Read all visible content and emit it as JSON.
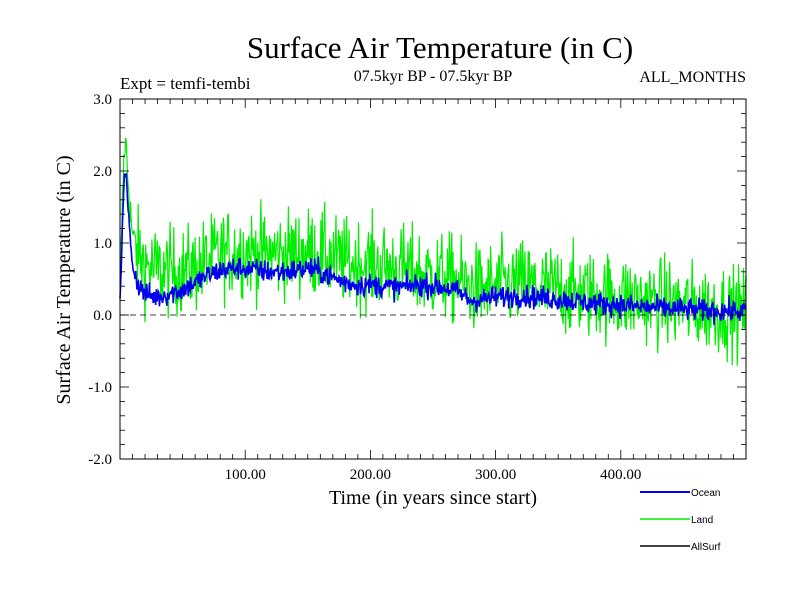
{
  "chart_data": {
    "type": "line",
    "title": "Surface Air Temperature (in C)",
    "subtitle": "07.5kyr BP - 07.5kyr BP",
    "left_label": "Expt = temfi-tembi",
    "right_label": "ALL_MONTHS",
    "xlabel": "Time (in years since start)",
    "ylabel": "Surface Air Temperature (in C)",
    "xlim": [
      0,
      500
    ],
    "ylim": [
      -2.0,
      3.0
    ],
    "x_ticks": [
      100,
      200,
      300,
      400
    ],
    "x_tick_labels": [
      "100.00",
      "200.00",
      "300.00",
      "400.00"
    ],
    "y_ticks": [
      -2.0,
      -1.0,
      0.0,
      1.0,
      2.0,
      3.0
    ],
    "y_tick_labels": [
      "-2.0",
      "-1.0",
      "0.0",
      "1.0",
      "2.0",
      "3.0"
    ],
    "zero_line": 0.0,
    "legend_position": "bottom-right",
    "series": [
      {
        "name": "Land",
        "color": "#00ee00",
        "x": [
          0,
          1,
          2,
          3,
          4,
          5,
          6,
          8,
          10,
          13,
          16,
          20,
          25,
          30,
          40,
          50,
          60,
          70,
          80,
          90,
          100,
          110,
          120,
          130,
          140,
          150,
          160,
          170,
          180,
          190,
          200,
          210,
          220,
          230,
          240,
          250,
          260,
          270,
          280,
          290,
          300,
          310,
          320,
          330,
          340,
          350,
          360,
          370,
          380,
          390,
          400,
          410,
          420,
          430,
          440,
          450,
          460,
          470,
          480,
          490,
          500
        ],
        "values": [
          0.3,
          0.9,
          1.6,
          2.1,
          2.4,
          2.3,
          2.0,
          1.5,
          1.1,
          0.9,
          0.8,
          0.7,
          0.65,
          0.62,
          0.6,
          0.6,
          0.65,
          0.75,
          0.85,
          0.88,
          0.88,
          0.86,
          0.85,
          0.85,
          0.86,
          0.88,
          0.85,
          0.78,
          0.74,
          0.72,
          0.7,
          0.68,
          0.65,
          0.62,
          0.58,
          0.55,
          0.52,
          0.48,
          0.38,
          0.36,
          0.4,
          0.42,
          0.44,
          0.4,
          0.38,
          0.36,
          0.32,
          0.3,
          0.28,
          0.26,
          0.24,
          0.22,
          0.2,
          0.18,
          0.16,
          0.12,
          0.1,
          0.1,
          0.08,
          0.06,
          0.05
        ]
      },
      {
        "name": "Ocean",
        "color": "#0000ee",
        "x": [
          0,
          1,
          2,
          3,
          4,
          5,
          6,
          8,
          10,
          13,
          16,
          20,
          25,
          30,
          40,
          50,
          60,
          70,
          80,
          90,
          100,
          110,
          120,
          130,
          140,
          150,
          160,
          170,
          180,
          190,
          200,
          210,
          220,
          230,
          240,
          250,
          260,
          270,
          280,
          290,
          300,
          310,
          320,
          330,
          340,
          350,
          360,
          370,
          380,
          390,
          400,
          410,
          420,
          430,
          440,
          450,
          460,
          470,
          480,
          490,
          500
        ],
        "values": [
          0.2,
          0.7,
          1.3,
          1.8,
          2.0,
          1.9,
          1.6,
          1.1,
          0.7,
          0.5,
          0.38,
          0.3,
          0.26,
          0.25,
          0.3,
          0.35,
          0.45,
          0.55,
          0.62,
          0.65,
          0.65,
          0.62,
          0.6,
          0.6,
          0.62,
          0.65,
          0.6,
          0.52,
          0.45,
          0.42,
          0.42,
          0.4,
          0.38,
          0.4,
          0.42,
          0.4,
          0.38,
          0.32,
          0.2,
          0.22,
          0.25,
          0.26,
          0.27,
          0.25,
          0.24,
          0.22,
          0.2,
          0.18,
          0.16,
          0.15,
          0.14,
          0.12,
          0.11,
          0.1,
          0.09,
          0.08,
          0.07,
          0.06,
          0.06,
          0.05,
          0.05
        ]
      },
      {
        "name": "AllSurf",
        "color": "#000000",
        "x": [],
        "values": []
      }
    ]
  }
}
